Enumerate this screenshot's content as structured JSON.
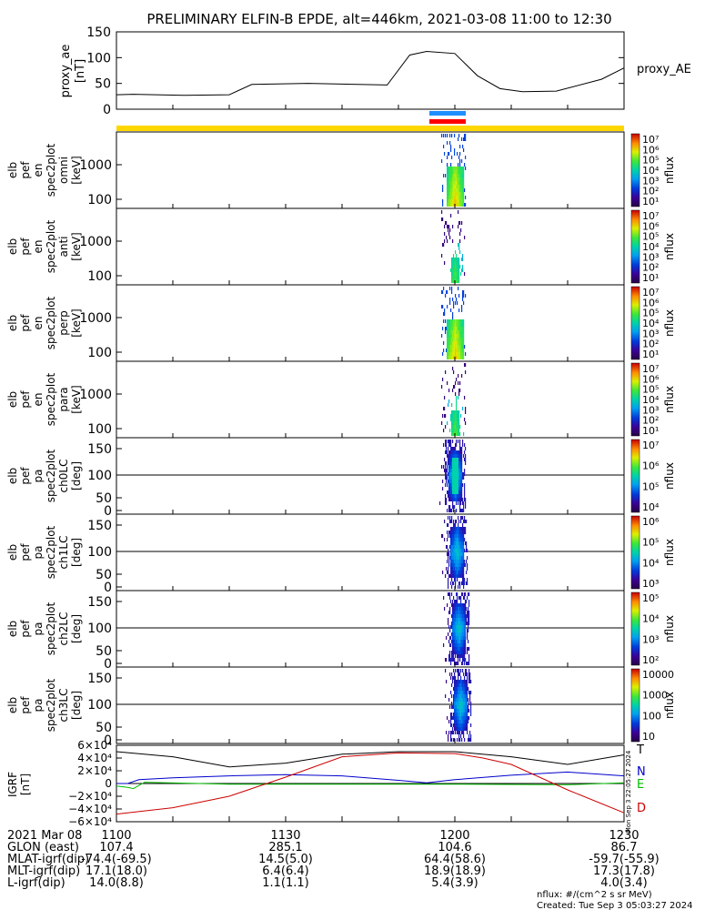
{
  "title": "PRELIMINARY ELFIN-B EPDE, alt=446km, 2021-03-08 11:00 to 12:30",
  "colors": {
    "ae_line": "#000000",
    "bar_blue": "#1e90ff",
    "bar_red": "#ff0000",
    "bar_yellow": "#ffd700",
    "grf_T": "#000000",
    "grf_N": "#0000cc",
    "grf_E": "#00bb00",
    "grf_D": "#cc0000"
  },
  "chart_data": [
    {
      "type": "line",
      "ylabel": [
        "proxy_ae",
        "[nT]"
      ],
      "ylim": [
        0,
        150
      ],
      "yticks": [
        "150",
        "100",
        "50",
        "0"
      ],
      "legend": "proxy_AE",
      "x_minutes": [
        0,
        3,
        12,
        20,
        24,
        34,
        48,
        52,
        55,
        60,
        64,
        68,
        72,
        78,
        86,
        90
      ],
      "values": [
        28,
        29,
        27,
        28,
        48,
        50,
        47,
        105,
        112,
        108,
        65,
        40,
        34,
        35,
        58,
        80
      ]
    },
    {
      "type": "heatmap",
      "panels": [
        {
          "ylabel": [
            "elb",
            "pef",
            "en",
            "spec2plot",
            "omni",
            "[keV]"
          ],
          "yticks": [
            "1000",
            "100"
          ],
          "cbar_label": "nflux",
          "cbar_ticks": [
            "10⁷",
            "10⁶",
            "10⁵",
            "10⁴",
            "10³",
            "10²",
            "10¹"
          ]
        },
        {
          "ylabel": [
            "elb",
            "pef",
            "en",
            "spec2plot",
            "anti",
            "[keV]"
          ],
          "yticks": [
            "1000",
            "100"
          ],
          "cbar_label": "nflux",
          "cbar_ticks": [
            "10⁷",
            "10⁶",
            "10⁵",
            "10⁴",
            "10³",
            "10²",
            "10¹"
          ]
        },
        {
          "ylabel": [
            "elb",
            "pef",
            "en",
            "spec2plot",
            "perp",
            "[keV]"
          ],
          "yticks": [
            "1000",
            "100"
          ],
          "cbar_label": "nflux",
          "cbar_ticks": [
            "10⁷",
            "10⁶",
            "10⁵",
            "10⁴",
            "10³",
            "10²",
            "10¹"
          ]
        },
        {
          "ylabel": [
            "elb",
            "pef",
            "en",
            "spec2plot",
            "para",
            "[keV]"
          ],
          "yticks": [
            "1000",
            "100"
          ],
          "cbar_label": "nflux",
          "cbar_ticks": [
            "10⁷",
            "10⁶",
            "10⁵",
            "10⁴",
            "10³",
            "10²",
            "10¹"
          ]
        },
        {
          "ylabel": [
            "elb",
            "pef",
            "pa",
            "spec2plot",
            "ch0LC",
            "[deg]"
          ],
          "yticks": [
            "150",
            "100",
            "50",
            "0"
          ],
          "cbar_label": "nflux",
          "cbar_ticks": [
            "10⁷",
            "10⁶",
            "10⁵",
            "10⁴"
          ]
        },
        {
          "ylabel": [
            "elb",
            "pef",
            "pa",
            "spec2plot",
            "ch1LC",
            "[deg]"
          ],
          "yticks": [
            "150",
            "100",
            "50",
            "0"
          ],
          "cbar_label": "nflux",
          "cbar_ticks": [
            "10⁶",
            "10⁵",
            "10⁴",
            "10³"
          ]
        },
        {
          "ylabel": [
            "elb",
            "pef",
            "pa",
            "spec2plot",
            "ch2LC",
            "[deg]"
          ],
          "yticks": [
            "150",
            "100",
            "50",
            "0"
          ],
          "cbar_label": "nflux",
          "cbar_ticks": [
            "10⁵",
            "10⁴",
            "10³",
            "10²"
          ]
        },
        {
          "ylabel": [
            "elb",
            "pef",
            "pa",
            "spec2plot",
            "ch3LC",
            "[deg]"
          ],
          "yticks": [
            "150",
            "100",
            "50",
            "0"
          ],
          "cbar_label": "nflux",
          "cbar_ticks": [
            "10000",
            "1000",
            "100",
            "10"
          ]
        }
      ]
    },
    {
      "type": "line",
      "ylabel": [
        "IGRF",
        "[nT]"
      ],
      "ylim": [
        -60000,
        60000
      ],
      "yticks": [
        "6×10⁴",
        "4×10⁴",
        "2×10⁴",
        "0",
        "−2×10⁴",
        "−4×10⁴",
        "−6×10⁴"
      ],
      "series": [
        {
          "name": "T",
          "x_minutes": [
            0,
            10,
            20,
            30,
            40,
            50,
            60,
            70,
            80,
            90
          ],
          "values": [
            50000,
            42000,
            26000,
            32000,
            46000,
            50000,
            50000,
            42000,
            30000,
            45000
          ]
        },
        {
          "name": "N",
          "x_minutes": [
            0,
            2,
            4,
            10,
            20,
            30,
            40,
            50,
            55,
            60,
            70,
            80,
            90
          ],
          "values": [
            0,
            0,
            6000,
            9000,
            12000,
            14000,
            12000,
            5000,
            1000,
            6000,
            13000,
            18000,
            12000
          ]
        },
        {
          "name": "E",
          "x_minutes": [
            0,
            2,
            3,
            5,
            20,
            40,
            60,
            80,
            90
          ],
          "values": [
            -4000,
            -6000,
            -8000,
            2000,
            -1000,
            -1000,
            -1000,
            -2000,
            1000
          ]
        },
        {
          "name": "D",
          "x_minutes": [
            0,
            10,
            20,
            30,
            40,
            50,
            60,
            65,
            70,
            80,
            90
          ],
          "values": [
            -48000,
            -38000,
            -20000,
            10000,
            42000,
            48000,
            47000,
            40000,
            30000,
            -10000,
            -46000
          ]
        }
      ]
    }
  ],
  "xaxis": {
    "tick_labels": [
      "1100",
      "1130",
      "1200",
      "1230"
    ],
    "rows": [
      {
        "label": "2021 Mar 08",
        "values": [
          "1100",
          "1130",
          "1200",
          "1230"
        ]
      },
      {
        "label": "GLON (east)",
        "values": [
          "107.4",
          "285.1",
          "104.6",
          "86.7"
        ]
      },
      {
        "label": "MLAT-igrf(dip)",
        "values": [
          "-74.4(-69.5)",
          "14.5(5.0)",
          "64.4(58.6)",
          "-59.7(-55.9)"
        ]
      },
      {
        "label": "MLT-igrf(dip)",
        "values": [
          "17.1(18.0)",
          "6.4(6.4)",
          "18.9(18.9)",
          "17.3(17.8)"
        ]
      },
      {
        "label": "L-igrf(dip)",
        "values": [
          "14.0(8.8)",
          "1.1(1.1)",
          "5.4(3.9)",
          "4.0(3.4)"
        ]
      }
    ]
  },
  "footer": {
    "nflux_units": "nflux: #/(cm^2 s sr MeV)",
    "created": "Created: Tue Sep  3 05:03:27 2024",
    "side_stamp": "Mon Sep  3 22:05:27 2024"
  }
}
